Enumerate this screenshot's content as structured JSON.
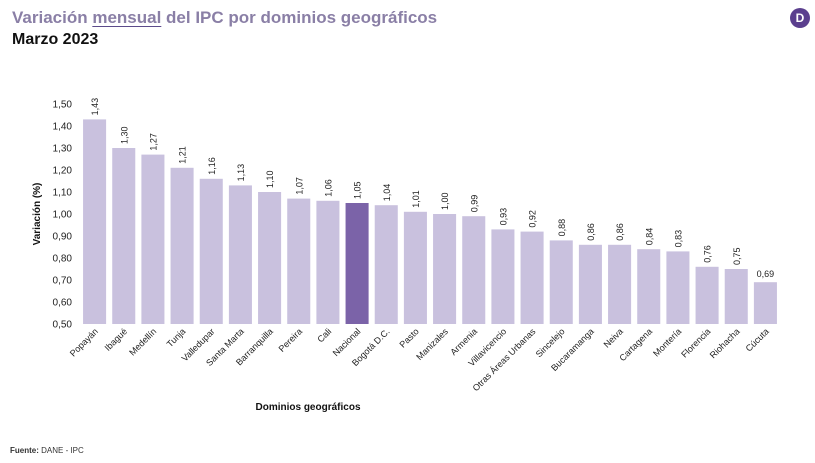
{
  "header": {
    "title_before": "Variación ",
    "title_underlined": "mensual",
    "title_after": " del IPC por dominios geográficos",
    "subtitle": "Marzo 2023"
  },
  "logo": {
    "icon": "dane-logo-icon",
    "glyph": "D",
    "color": "#5b3f8e"
  },
  "footer": {
    "source_label": "Fuente:",
    "source_text": "DANE - IPC"
  },
  "chart_data": {
    "type": "bar",
    "xlabel": "Dominios geográficos",
    "ylabel": "Variación (%)",
    "ylim": [
      0.5,
      1.5
    ],
    "yticks": [
      "0,50",
      "0,60",
      "0,70",
      "0,80",
      "0,90",
      "1,00",
      "1,10",
      "1,20",
      "1,30",
      "1,40",
      "1,50"
    ],
    "categories": [
      "Popayán",
      "Ibagué",
      "Medellín",
      "Tunja",
      "Valledupar",
      "Santa Marta",
      "Barranquilla",
      "Pereira",
      "Cali",
      "Nacional",
      "Bogotá D.C.",
      "Pasto",
      "Manizales",
      "Armenia",
      "Villavicencio",
      "Otras Áreas Urbanas",
      "Sincelejo",
      "Bucaramanga",
      "Neiva",
      "Cartagena",
      "Montería",
      "Florencia",
      "Riohacha",
      "Cúcuta"
    ],
    "values": [
      1.43,
      1.3,
      1.27,
      1.21,
      1.16,
      1.13,
      1.1,
      1.07,
      1.06,
      1.05,
      1.04,
      1.01,
      1.0,
      0.99,
      0.93,
      0.92,
      0.88,
      0.86,
      0.86,
      0.84,
      0.83,
      0.76,
      0.75,
      0.69
    ],
    "value_labels": [
      "1,43",
      "1,30",
      "1,27",
      "1,21",
      "1,16",
      "1,13",
      "1,10",
      "1,07",
      "1,06",
      "1,05",
      "1,04",
      "1,01",
      "1,00",
      "0,99",
      "0,93",
      "0,92",
      "0,88",
      "0,86",
      "0,86",
      "0,84",
      "0,83",
      "0,76",
      "0,75",
      "0,69"
    ],
    "bar_color": "#c9c1de",
    "highlight_category": "Nacional",
    "highlight_color": "#7b63a8",
    "grid": false
  }
}
